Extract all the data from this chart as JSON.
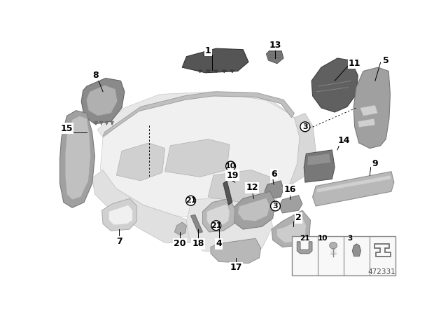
{
  "background_color": "#ffffff",
  "figsize": [
    6.4,
    4.48
  ],
  "dpi": 100,
  "diagram_number": "472331",
  "parts": {
    "dashboard_body": {
      "color": "#d8d8d8",
      "edge": "#b0b0b0"
    },
    "dark_part": {
      "color": "#606060",
      "edge": "#404040"
    },
    "medium_part": {
      "color": "#909090",
      "edge": "#686868"
    },
    "light_part": {
      "color": "#b8b8b8",
      "edge": "#909090"
    },
    "very_light": {
      "color": "#e0e0e0",
      "edge": "#c0c0c0"
    }
  },
  "label_color": "#000000",
  "line_color": "#000000",
  "circle_color": "#000000"
}
